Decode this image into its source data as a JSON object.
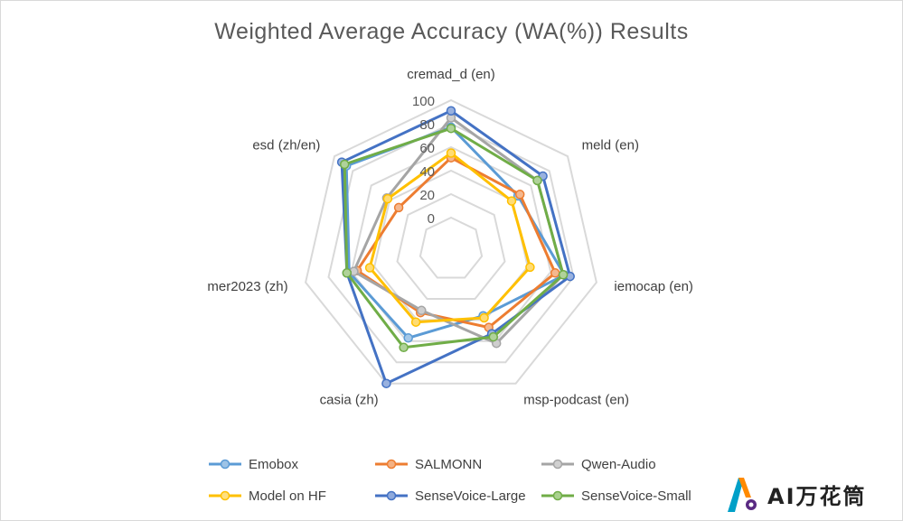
{
  "chart_data": {
    "type": "radar",
    "title": "Weighted Average Accuracy (WA(%)) Results",
    "axes": [
      "cremad_d (en)",
      "meld (en)",
      "iemocap (en)",
      "msp-podcast (en)",
      "casia (zh)",
      "mer2023 (zh)",
      "esd  (zh/en)"
    ],
    "r_range": [
      0,
      100
    ],
    "ticks": [
      0,
      20,
      40,
      60,
      80,
      100
    ],
    "grid": true,
    "legend_position": "bottom",
    "series": [
      {
        "name": "Emobox",
        "color": "#5b9bd5",
        "values": [
          77,
          46,
          72,
          36,
          57,
          62,
          87
        ]
      },
      {
        "name": "SALMONN",
        "color": "#ed7d31",
        "values": [
          51,
          48,
          64,
          47,
          33,
          55,
          30
        ]
      },
      {
        "name": "Qwen-Audio",
        "color": "#a5a5a5",
        "values": [
          85,
          67,
          71,
          62,
          31,
          58,
          43
        ]
      },
      {
        "name": "Model on HF",
        "color": "#ffc000",
        "values": [
          55,
          39,
          42,
          38,
          42,
          44,
          42
        ]
      },
      {
        "name": "SenseVoice-Large",
        "color": "#4472c4",
        "values": [
          91,
          73,
          77,
          53,
          100,
          64,
          92
        ]
      },
      {
        "name": "SenseVoice-Small",
        "color": "#70ad47",
        "values": [
          76,
          67,
          71,
          56,
          66,
          64,
          89
        ]
      }
    ]
  },
  "watermark": {
    "text": "AI万花筒"
  }
}
